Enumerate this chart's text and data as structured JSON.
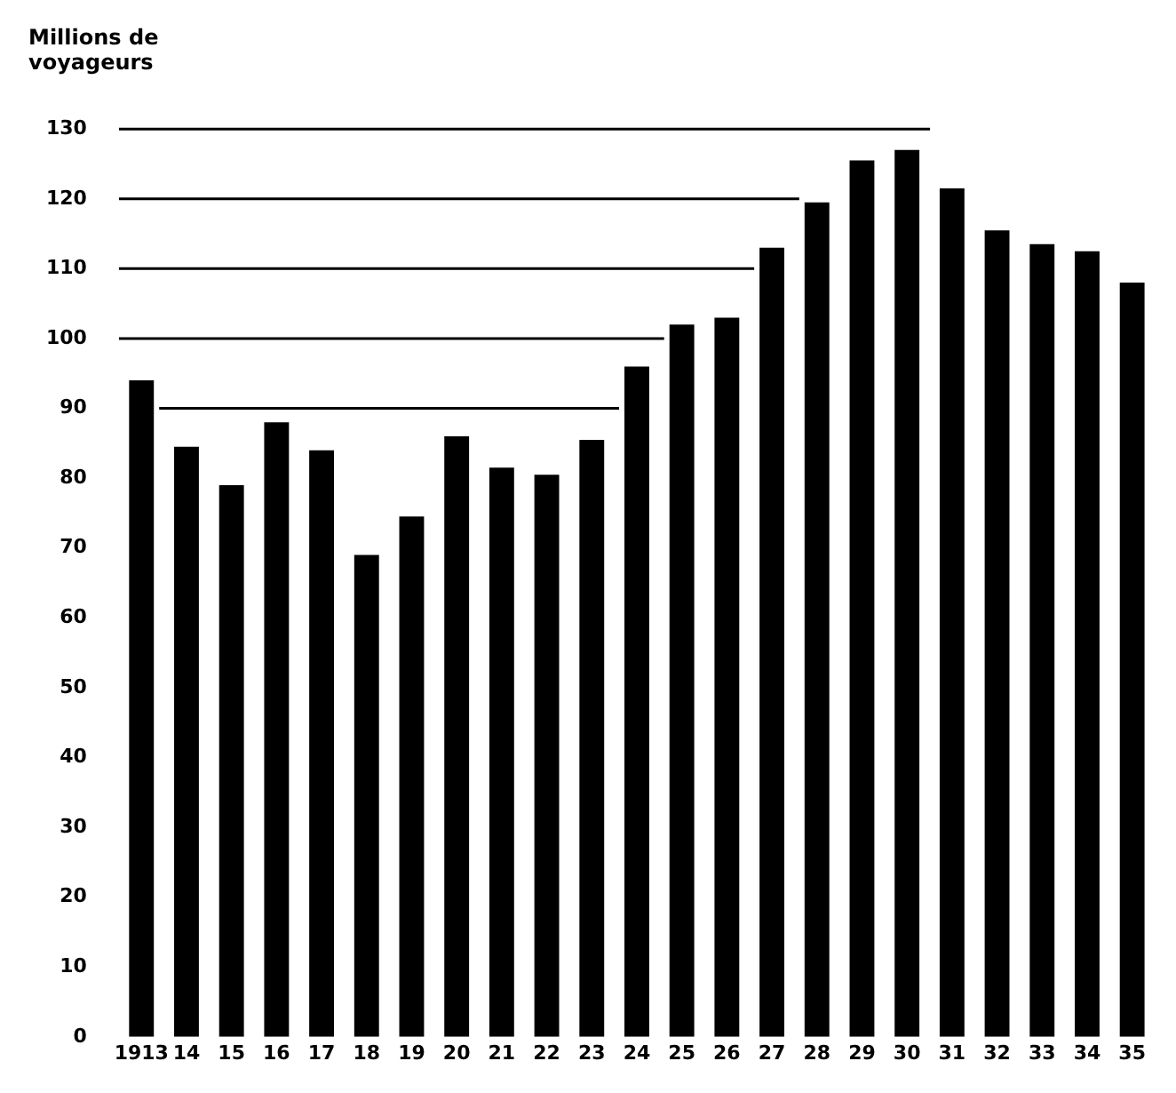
{
  "chart_data": {
    "type": "bar",
    "ylabel": "Millions de voyageurs",
    "categories": [
      "1913",
      "14",
      "15",
      "16",
      "17",
      "18",
      "19",
      "20",
      "21",
      "22",
      "23",
      "24",
      "25",
      "26",
      "27",
      "28",
      "29",
      "30",
      "31",
      "32",
      "33",
      "34",
      "35"
    ],
    "values": [
      94,
      84.5,
      79,
      88,
      84,
      69,
      74.5,
      86,
      81.5,
      80.5,
      85.5,
      96,
      102,
      103,
      113,
      119.5,
      125.5,
      127,
      121.5,
      115.5,
      113.5,
      112.5,
      108
    ],
    "color": "#000000",
    "ylim": [
      0,
      130
    ],
    "yticks": [
      0,
      10,
      20,
      30,
      40,
      50,
      60,
      70,
      80,
      90,
      100,
      110,
      120,
      130
    ],
    "grid": false,
    "legend": false,
    "ref_lines": [
      {
        "axis": "y",
        "value": 90,
        "color": "#000000"
      },
      {
        "axis": "y",
        "value": 100,
        "color": "#000000"
      },
      {
        "axis": "y",
        "value": 110,
        "color": "#000000"
      },
      {
        "axis": "y",
        "value": 120,
        "color": "#000000"
      },
      {
        "axis": "y",
        "value": 130,
        "color": "#000000"
      }
    ]
  }
}
